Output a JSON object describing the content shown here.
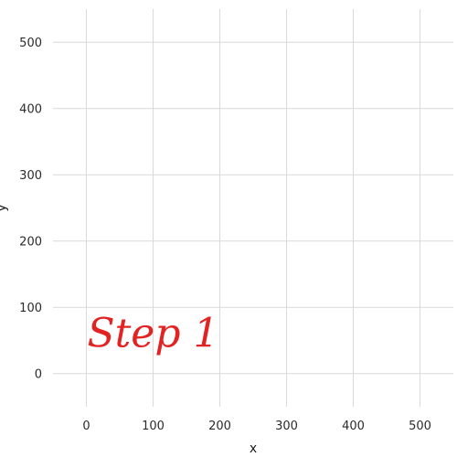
{
  "chart_data": {
    "type": "scatter",
    "title": "",
    "xlabel": "x",
    "ylabel": "y",
    "xlim": [
      -50,
      550
    ],
    "ylim": [
      -50,
      550
    ],
    "x_ticks": [
      0,
      100,
      200,
      300,
      400,
      500
    ],
    "y_ticks": [
      0,
      100,
      200,
      300,
      400,
      500
    ],
    "grid": true,
    "series": [],
    "annotations": [
      {
        "text": "Step 1",
        "x": 100,
        "y": 60,
        "color": "#e32222"
      }
    ]
  }
}
